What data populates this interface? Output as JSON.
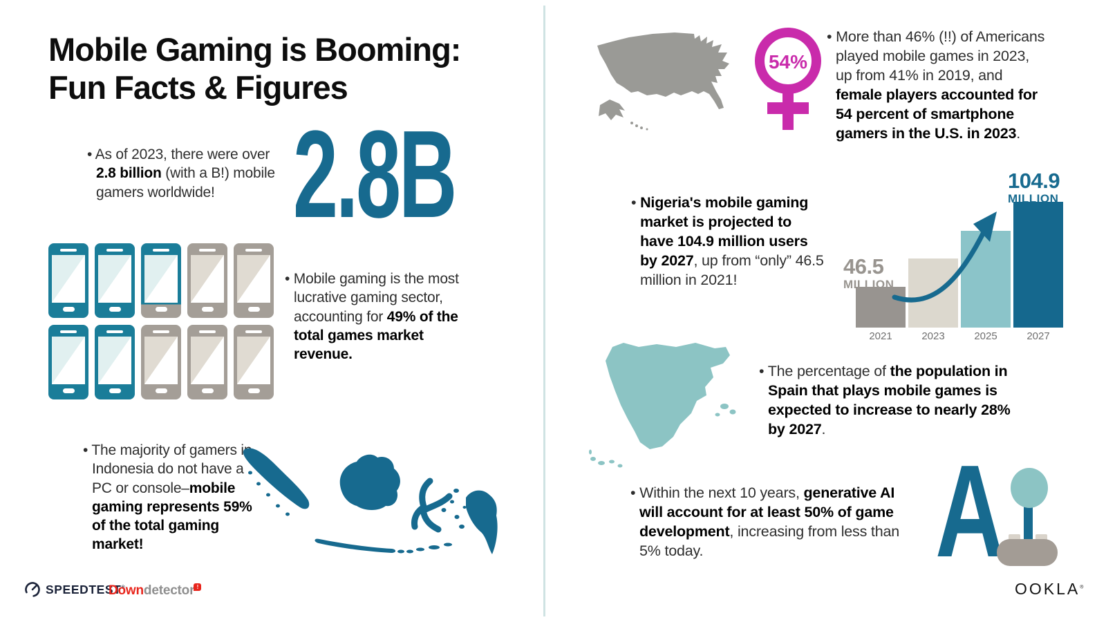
{
  "title": {
    "line1": "Mobile Gaming is Booming:",
    "line2": "Fun Facts & Figures"
  },
  "facts": {
    "gamers": {
      "pre": "As of 2023, there were over ",
      "bold": "2.8 billion",
      "post": " (with a B!) mobile gamers worldwide!",
      "big_stat": "2.8B"
    },
    "revenue": {
      "pre": "Mobile gaming is the most lucrative gaming sector, accounting for ",
      "bold": "49% of the total games market revenue.",
      "post": ""
    },
    "indonesia": {
      "pre": "The majority of gamers in Indonesia do not have a PC or console–",
      "bold": "mobile gaming represents 59% of the total gaming market!",
      "post": ""
    },
    "usa": {
      "pre": "More than 46% (!!) of Americans played mobile games in 2023, up from 41% in 2019, and ",
      "bold": "female players accounted for 54 percent of smartphone gamers in the U.S. in 2023",
      "post": ".",
      "badge": "54%"
    },
    "nigeria": {
      "pre": "",
      "bold": "Nigeria's mobile gaming market is projected to have 104.9 million users by 2027",
      "post": ", up from “only” 46.5 million in 2021!"
    },
    "spain": {
      "pre": "The percentage of ",
      "bold": "the population in Spain that plays mobile games is expected to increase to nearly 28% by 2027",
      "post": "."
    },
    "ai": {
      "pre": "Within the next 10 years, ",
      "bold": "generative AI will account for at least 50% of game development",
      "post": ", increasing from less than 5% today.",
      "letter": "A"
    }
  },
  "phone_grid": {
    "pattern": [
      [
        "teal",
        "teal",
        "teal-partial",
        "gray",
        "gray"
      ],
      [
        "teal",
        "teal",
        "gray",
        "gray",
        "gray"
      ]
    ]
  },
  "chart_data": {
    "type": "bar",
    "categories": [
      "2021",
      "2023",
      "2025",
      "2027"
    ],
    "values": [
      46.5,
      66,
      85,
      104.9
    ],
    "values_note": "only 2021 and 2027 are labeled; 2023 and 2025 estimated from bar heights",
    "unit": "million users",
    "start_label": {
      "value": "46.5",
      "unit": "MILLION"
    },
    "end_label": {
      "value": "104.9",
      "unit": "MILLION"
    },
    "colors": [
      "#989490",
      "#DCD8CE",
      "#8BC4C9",
      "#15688E"
    ],
    "gridlines": false,
    "legend": "none"
  },
  "colors": {
    "accent_teal": "#176A8F",
    "light_teal": "#8CC4C4",
    "phone_teal": "#1A7D99",
    "pink": "#C92BAB",
    "map_gray": "#9A9A96",
    "bar_gray": "#989490",
    "bar_beige": "#DCD8CE",
    "divider": "#CFE3E3"
  },
  "footer": {
    "speedtest": "SPEEDTEST",
    "speedtest_mark": "®",
    "downdetector_bold": "Down",
    "downdetector_rest": "detector",
    "downdetector_badge": "!",
    "ookla": "OOKLA",
    "ookla_mark": "®"
  }
}
